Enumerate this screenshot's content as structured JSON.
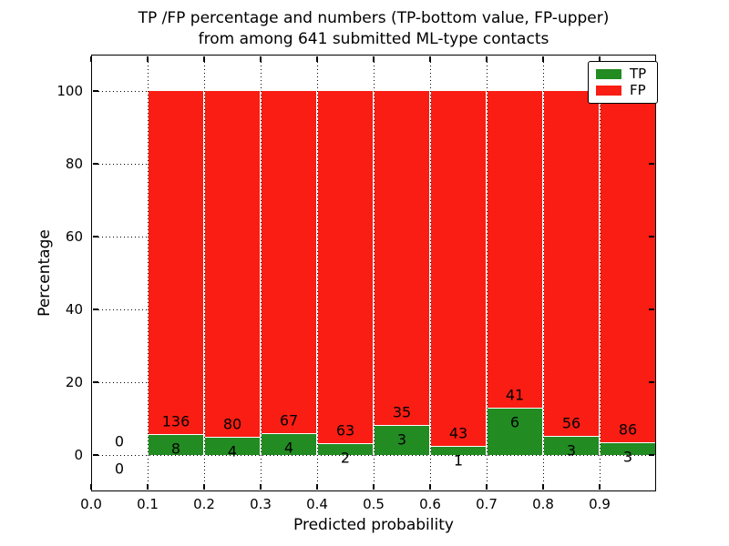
{
  "figure": {
    "background_color": "#ffffff",
    "text_color": "#000000"
  },
  "chart_data": {
    "type": "bar",
    "subtype": "stacked-100-percent",
    "title_lines": [
      "TP /FP percentage and numbers (TP-bottom value, FP-upper)",
      "from among 641 submitted ML-type contacts"
    ],
    "xlabel": "Predicted probability",
    "ylabel": "Percentage",
    "total_submitted": 641,
    "xlim": [
      0.0,
      1.0
    ],
    "ylim": [
      -10,
      110
    ],
    "xtick_values": [
      0.0,
      0.1,
      0.2,
      0.3,
      0.4,
      0.5,
      0.6,
      0.7,
      0.8,
      0.9
    ],
    "xtick_labels": [
      "0.0",
      "0.1",
      "0.2",
      "0.3",
      "0.4",
      "0.5",
      "0.6",
      "0.7",
      "0.8",
      "0.9"
    ],
    "ytick_values": [
      0,
      20,
      40,
      60,
      80,
      100
    ],
    "ytick_labels": [
      "0",
      "20",
      "40",
      "60",
      "80",
      "100"
    ],
    "grid": true,
    "legend": {
      "position": "upper right",
      "entries": [
        "TP",
        "FP"
      ]
    },
    "bin_edges": [
      0.0,
      0.1,
      0.2,
      0.3,
      0.4,
      0.5,
      0.6,
      0.7,
      0.8,
      0.9,
      1.0
    ],
    "series": [
      {
        "name": "TP",
        "color": "#228b22",
        "counts": [
          0,
          8,
          4,
          4,
          2,
          3,
          1,
          6,
          3,
          3
        ]
      },
      {
        "name": "FP",
        "color": "#fa1d13",
        "counts": [
          0,
          136,
          80,
          67,
          63,
          35,
          43,
          41,
          56,
          86
        ]
      }
    ],
    "tp_percent_per_bin": [
      0,
      5.56,
      4.76,
      5.63,
      3.08,
      7.89,
      2.27,
      12.77,
      5.08,
      3.37
    ]
  }
}
